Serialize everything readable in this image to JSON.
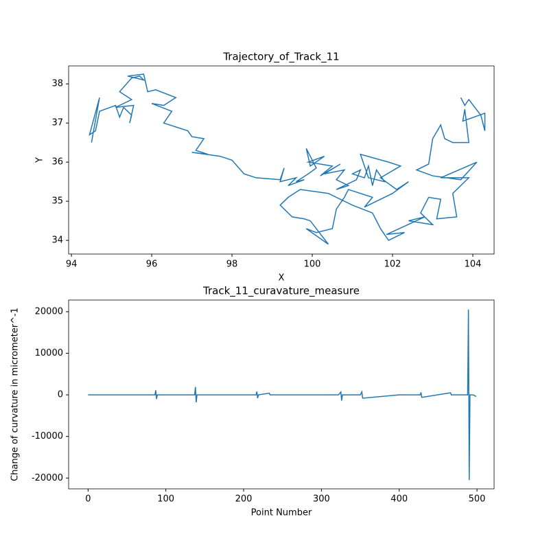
{
  "chart_data": [
    {
      "type": "line",
      "title": "Trajectory_of_Track_11",
      "xlabel": "X",
      "ylabel": "Y",
      "xlim": [
        93.93,
        104.53
      ],
      "ylim": [
        33.65,
        38.46
      ],
      "xticks": [
        94,
        96,
        98,
        100,
        102,
        104
      ],
      "yticks": [
        34,
        35,
        36,
        37,
        38
      ],
      "series": [
        {
          "color": "#1f77b4",
          "x": [
            94.5,
            94.7,
            94.45,
            94.6,
            94.7,
            95.1,
            95.2,
            95.3,
            95.5,
            95.45,
            95.55,
            95.1,
            95.5,
            95.2,
            95.5,
            95.7,
            95.8,
            95.6,
            95.4,
            95.8,
            95.9,
            96.1,
            96.6,
            96.3,
            96.0,
            96.5,
            96.3,
            96.9,
            97.0,
            97.3,
            97.1,
            97.4,
            97.0,
            97.7,
            98.0,
            98.3,
            98.6,
            99.2,
            99.3,
            99.2,
            99.6,
            99.4,
            99.8,
            99.6,
            99.9,
            100.1,
            99.85,
            99.95,
            100.3,
            99.9,
            100.5,
            100.2,
            100.7,
            100.3,
            100.8,
            100.6,
            100.9,
            100.6,
            101.1,
            101.2,
            101.0,
            101.3,
            101.4,
            101.5,
            101.6,
            101.8,
            101.4,
            101.2,
            101.9,
            102.2,
            101.7,
            102.1,
            102.4,
            102.0,
            101.6,
            101.3,
            101.5,
            100.9,
            100.8,
            100.6,
            100.5,
            100.1,
            99.85,
            100.4,
            99.95,
            99.8,
            99.5,
            99.2,
            99.4,
            99.7,
            100.4,
            101.0,
            101.5,
            101.7,
            101.9,
            102.3,
            101.85,
            102.8,
            102.4,
            103.0,
            102.7,
            102.9,
            103.2,
            103.1,
            103.6,
            103.5,
            103.9,
            103.2,
            104.1,
            103.7,
            103.0,
            102.6,
            102.9,
            103.0,
            103.2,
            103.3,
            103.5,
            103.9,
            103.8,
            103.75,
            104.3,
            104.3,
            104.2,
            103.9,
            103.8,
            103.7
          ],
          "values": [
            36.5,
            37.65,
            36.7,
            36.8,
            37.3,
            37.45,
            37.15,
            37.4,
            37.2,
            37.0,
            37.45,
            37.4,
            37.6,
            37.8,
            38.15,
            38.2,
            38.1,
            38.15,
            38.2,
            38.25,
            37.8,
            37.85,
            37.65,
            37.45,
            37.5,
            37.3,
            37.0,
            36.8,
            36.65,
            36.6,
            36.3,
            36.2,
            36.25,
            36.15,
            36.05,
            35.7,
            35.6,
            35.55,
            35.85,
            35.5,
            35.6,
            35.4,
            35.55,
            35.5,
            35.7,
            35.85,
            36.35,
            35.9,
            36.15,
            36.0,
            35.9,
            35.65,
            35.95,
            35.7,
            35.8,
            35.55,
            35.4,
            35.3,
            35.55,
            35.8,
            35.7,
            35.6,
            35.9,
            35.4,
            35.8,
            35.5,
            35.6,
            36.2,
            36.0,
            35.9,
            35.6,
            35.3,
            35.5,
            35.2,
            35.0,
            34.85,
            35.1,
            35.3,
            35.1,
            34.8,
            34.3,
            34.2,
            34.3,
            33.9,
            34.5,
            34.55,
            34.6,
            34.9,
            35.1,
            35.3,
            35.2,
            34.9,
            34.7,
            34.3,
            34.0,
            34.2,
            34.15,
            34.6,
            34.5,
            34.4,
            34.7,
            35.1,
            35.05,
            34.55,
            34.6,
            35.2,
            35.6,
            35.6,
            36.0,
            35.55,
            35.65,
            35.8,
            35.95,
            36.6,
            36.95,
            36.6,
            36.5,
            36.5,
            37.35,
            37.05,
            37.25,
            36.8,
            37.2,
            37.6,
            37.45,
            37.65
          ]
        }
      ]
    },
    {
      "type": "line",
      "title": "Track_11_curavature_measure",
      "xlabel": "Point Number",
      "ylabel": "Change of curvature in micrometer^-1",
      "xlim": [
        -25,
        522
      ],
      "ylim": [
        -22600,
        22800
      ],
      "xticks": [
        0,
        100,
        200,
        300,
        400,
        500
      ],
      "yticks": [
        -20000,
        -10000,
        0,
        10000,
        20000
      ],
      "series": [
        {
          "color": "#1f77b4",
          "x": [
            0,
            50,
            86,
            87,
            88,
            89,
            137,
            138,
            139,
            140,
            184,
            216,
            217,
            218,
            219,
            233,
            234,
            250,
            322,
            325,
            326,
            327,
            350,
            352,
            353,
            400,
            427,
            428,
            429,
            466,
            467,
            488,
            489,
            490,
            491,
            495,
            499
          ],
          "values": [
            0,
            0,
            0,
            1100,
            -1000,
            0,
            0,
            1900,
            -1800,
            0,
            0,
            0,
            800,
            -800,
            0,
            400,
            0,
            0,
            0,
            700,
            -1400,
            0,
            0,
            700,
            -800,
            0,
            0,
            600,
            -600,
            500,
            0,
            0,
            20500,
            -20500,
            0,
            0,
            -400
          ]
        }
      ]
    }
  ]
}
